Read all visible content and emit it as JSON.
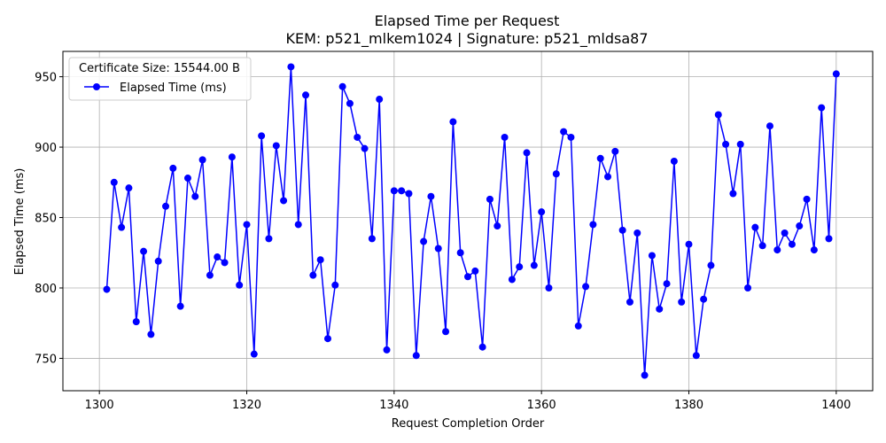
{
  "chart_data": {
    "type": "line",
    "title": "Elapsed Time per Request",
    "subtitle": "KEM: p521_mlkem1024 | Signature: p521_mldsa87",
    "xlabel": "Request Completion Order",
    "ylabel": "Elapsed Time (ms)",
    "xlim": [
      1295.05,
      1404.95
    ],
    "ylim": [
      727,
      968
    ],
    "xticks": [
      1300,
      1320,
      1340,
      1360,
      1380,
      1400
    ],
    "yticks": [
      750,
      800,
      850,
      900,
      950
    ],
    "grid": true,
    "legend": {
      "title": "Certificate Size: 15544.00 B",
      "placement": "top-left"
    },
    "series": [
      {
        "name": "Elapsed Time (ms)",
        "color": "#0000ff",
        "marker": "circle",
        "x": [
          1301,
          1302,
          1303,
          1304,
          1305,
          1306,
          1307,
          1308,
          1309,
          1310,
          1311,
          1312,
          1313,
          1314,
          1315,
          1316,
          1317,
          1318,
          1319,
          1320,
          1321,
          1322,
          1323,
          1324,
          1325,
          1326,
          1327,
          1328,
          1329,
          1330,
          1331,
          1332,
          1333,
          1334,
          1335,
          1336,
          1337,
          1338,
          1339,
          1340,
          1341,
          1342,
          1343,
          1344,
          1345,
          1346,
          1347,
          1348,
          1349,
          1350,
          1351,
          1352,
          1353,
          1354,
          1355,
          1356,
          1357,
          1358,
          1359,
          1360,
          1361,
          1362,
          1363,
          1364,
          1365,
          1366,
          1367,
          1368,
          1369,
          1370,
          1371,
          1372,
          1373,
          1374,
          1375,
          1376,
          1377,
          1378,
          1379,
          1380,
          1381,
          1382,
          1383,
          1384,
          1385,
          1386,
          1387,
          1388,
          1389,
          1390,
          1391,
          1392,
          1393,
          1394,
          1395,
          1396,
          1397,
          1398,
          1399,
          1400
        ],
        "values": [
          799,
          875,
          843,
          871,
          776,
          826,
          767,
          819,
          858,
          885,
          787,
          878,
          865,
          891,
          809,
          822,
          818,
          893,
          802,
          845,
          753,
          908,
          835,
          901,
          862,
          957,
          845,
          937,
          809,
          820,
          764,
          802,
          943,
          931,
          907,
          899,
          835,
          934,
          756,
          869,
          869,
          867,
          752,
          833,
          865,
          828,
          769,
          918,
          825,
          808,
          812,
          758,
          863,
          844,
          907,
          806,
          815,
          896,
          816,
          854,
          800,
          881,
          911,
          907,
          773,
          801,
          845,
          892,
          879,
          897,
          841,
          790,
          839,
          738,
          823,
          785,
          803,
          890,
          790,
          831,
          752,
          792,
          816,
          923,
          902,
          867,
          902,
          800,
          843,
          830,
          915,
          827,
          839,
          831,
          844,
          863,
          827,
          928,
          835,
          952
        ]
      }
    ]
  }
}
